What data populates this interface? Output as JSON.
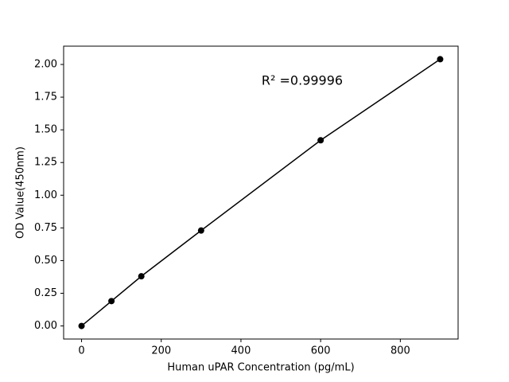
{
  "chart_data": {
    "type": "line",
    "annotation": "R² =0.99996",
    "x_label": "Human uPAR Concentration (pg/mL)",
    "y_label": "OD Value(450nm)",
    "x": [
      0,
      75,
      150,
      300,
      600,
      900
    ],
    "series": [
      {
        "color": "#000000",
        "values": [
          0.0,
          0.19,
          0.38,
          0.73,
          1.42,
          2.04
        ]
      }
    ],
    "xlim": [
      -45,
      945
    ],
    "xticks": [
      0,
      200,
      400,
      600,
      800
    ],
    "ylim": [
      -0.1,
      2.14
    ],
    "yticks": [
      {
        "value": 0,
        "label": "0.00"
      },
      {
        "value": 0.25,
        "label": "0.25"
      },
      {
        "value": 0.5,
        "label": "0.50"
      },
      {
        "value": 0.75,
        "label": "0.75"
      },
      {
        "value": 1,
        "label": "1.00"
      },
      {
        "value": 1.25,
        "label": "1.25"
      },
      {
        "value": 1.5,
        "label": "1.50"
      },
      {
        "value": 1.75,
        "label": "1.75"
      },
      {
        "value": 2,
        "label": "2.00"
      }
    ]
  }
}
